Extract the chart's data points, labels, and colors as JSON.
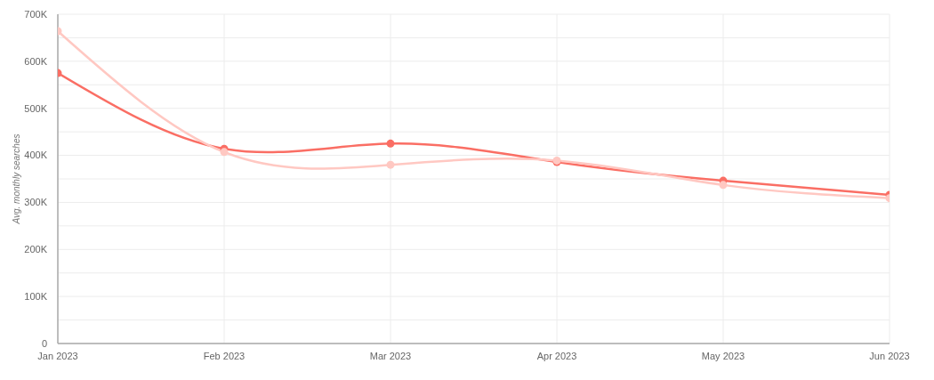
{
  "chart_data": {
    "type": "line",
    "ylabel": "Avg. monthly searches",
    "categories": [
      "Jan 2023",
      "Feb 2023",
      "Mar 2023",
      "Apr 2023",
      "May 2023",
      "Jun 2023"
    ],
    "series": [
      {
        "color": "#fa6e64",
        "values": [
          575000,
          414000,
          425000,
          386000,
          346000,
          316000
        ]
      },
      {
        "color": "#ffc8c2",
        "values": [
          664000,
          407000,
          380000,
          389000,
          337000,
          309000
        ]
      }
    ],
    "ylim": [
      0,
      700000
    ],
    "yticks": [
      0,
      {
        "value": 50000,
        "label": null
      },
      {
        "value": 100000,
        "label": "100K"
      },
      {
        "value": 150000,
        "label": null
      },
      {
        "value": 200000,
        "label": "200K"
      },
      {
        "value": 250000,
        "label": null
      },
      {
        "value": 300000,
        "label": "300K"
      },
      {
        "value": 350000,
        "label": null
      },
      {
        "value": 400000,
        "label": "400K"
      },
      {
        "value": 450000,
        "label": null
      },
      {
        "value": 500000,
        "label": "500K"
      },
      {
        "value": 550000,
        "label": null
      },
      {
        "value": 600000,
        "label": "600K"
      },
      {
        "value": 650000,
        "label": null
      },
      {
        "value": 700000,
        "label": "700K"
      }
    ],
    "grid": true,
    "marker": "circle",
    "line_style": "solid"
  }
}
